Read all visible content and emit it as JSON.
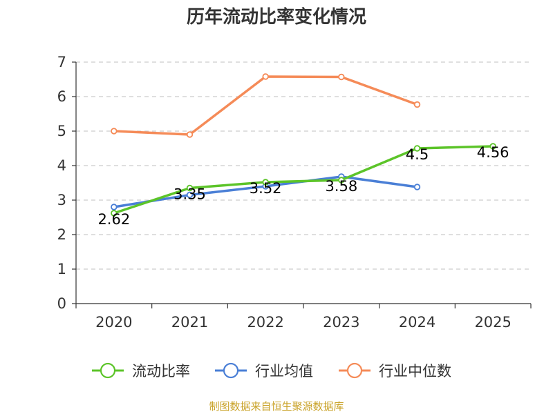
{
  "chart_data": {
    "type": "line",
    "title": "历年流动比率变化情况",
    "categories": [
      "2020",
      "2021",
      "2022",
      "2023",
      "2024",
      "2025"
    ],
    "ylim": [
      0,
      7
    ],
    "yticks": [
      0,
      1,
      2,
      3,
      4,
      5,
      6,
      7
    ],
    "grid": true,
    "legend_position": "bottom",
    "series": [
      {
        "name": "流动比率",
        "color": "#5cc429",
        "values": [
          2.62,
          3.35,
          3.52,
          3.58,
          4.5,
          4.56
        ],
        "labels": [
          "2.62",
          "3.35",
          "3.52",
          "3.58",
          "4.5",
          "4.56"
        ]
      },
      {
        "name": "行业均值",
        "color": "#4a7fd6",
        "values": [
          2.8,
          3.15,
          3.4,
          3.68,
          3.38,
          null
        ]
      },
      {
        "name": "行业中位数",
        "color": "#f58b58",
        "values": [
          5.0,
          4.9,
          6.58,
          6.57,
          5.77,
          null
        ]
      }
    ],
    "source": "制图数据来自恒生聚源数据库"
  }
}
